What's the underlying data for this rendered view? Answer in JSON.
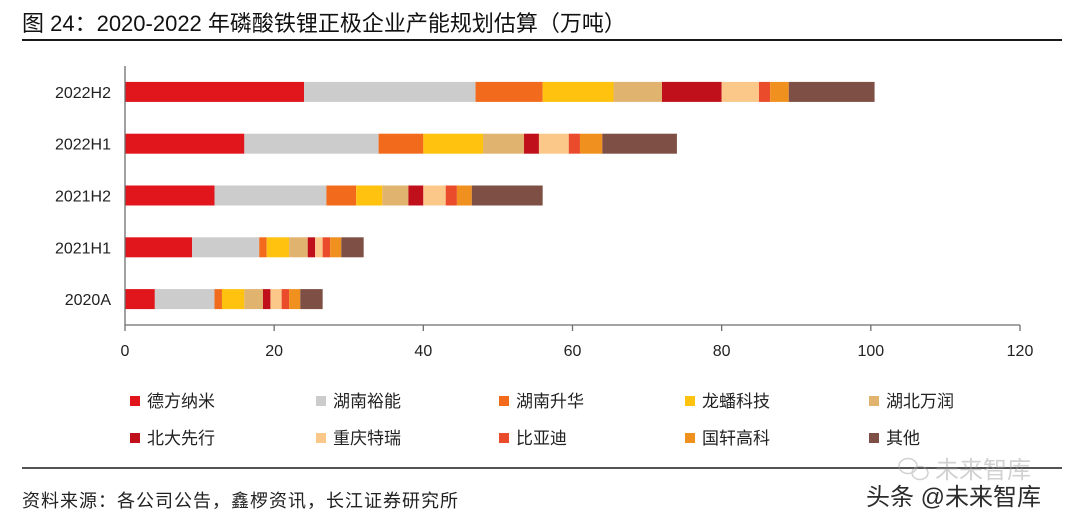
{
  "figure": {
    "title": "图 24：2020-2022 年磷酸铁锂正极企业产能规划估算（万吨）",
    "source": "资料来源：各公司公告，鑫椤资讯，长江证券研究所",
    "watermark": "头条 @未来智库",
    "watermark_faint": "未来智库"
  },
  "colors": {
    "text": "#222222",
    "axis": "#6e6e6e",
    "rule": "#1a1a1a"
  },
  "chart_data": {
    "type": "bar",
    "orientation": "horizontal",
    "stacked": true,
    "title": "2020-2022 年磷酸铁锂正极企业产能规划估算（万吨）",
    "xlabel": "",
    "ylabel": "",
    "categories": [
      "2022H2",
      "2022H1",
      "2021H2",
      "2021H1",
      "2020A"
    ],
    "xlim": [
      0,
      120
    ],
    "xticks": [
      0,
      20,
      40,
      60,
      80,
      100,
      120
    ],
    "grid": false,
    "legend": "bottom",
    "series": [
      {
        "name": "德方纳米",
        "color": "#e0161c",
        "values": [
          24,
          16,
          12,
          9,
          4
        ]
      },
      {
        "name": "湖南裕能",
        "color": "#cccccc",
        "values": [
          23,
          18,
          15,
          9,
          8
        ]
      },
      {
        "name": "湖南升华",
        "color": "#f26b1d",
        "values": [
          9,
          6,
          4,
          1,
          1
        ]
      },
      {
        "name": "龙蟠科技",
        "color": "#ffc20e",
        "values": [
          9.5,
          8,
          3.5,
          3,
          3
        ]
      },
      {
        "name": "湖北万润",
        "color": "#e0b36e",
        "values": [
          6.5,
          5.5,
          3.5,
          2.5,
          2.5
        ]
      },
      {
        "name": "北大先行",
        "color": "#c0101c",
        "values": [
          8,
          2,
          2,
          1,
          1
        ]
      },
      {
        "name": "重庆特瑞",
        "color": "#fbc88a",
        "values": [
          5,
          4,
          3,
          1,
          1.5
        ]
      },
      {
        "name": "比亚迪",
        "color": "#e94b2b",
        "values": [
          1.5,
          1.5,
          1.5,
          1,
          1
        ]
      },
      {
        "name": "国轩高科",
        "color": "#f0901f",
        "values": [
          2.5,
          3,
          2,
          1.5,
          1.5
        ]
      },
      {
        "name": "其他",
        "color": "#7e4f44",
        "values": [
          11.5,
          10,
          9.5,
          3,
          3
        ]
      }
    ]
  }
}
